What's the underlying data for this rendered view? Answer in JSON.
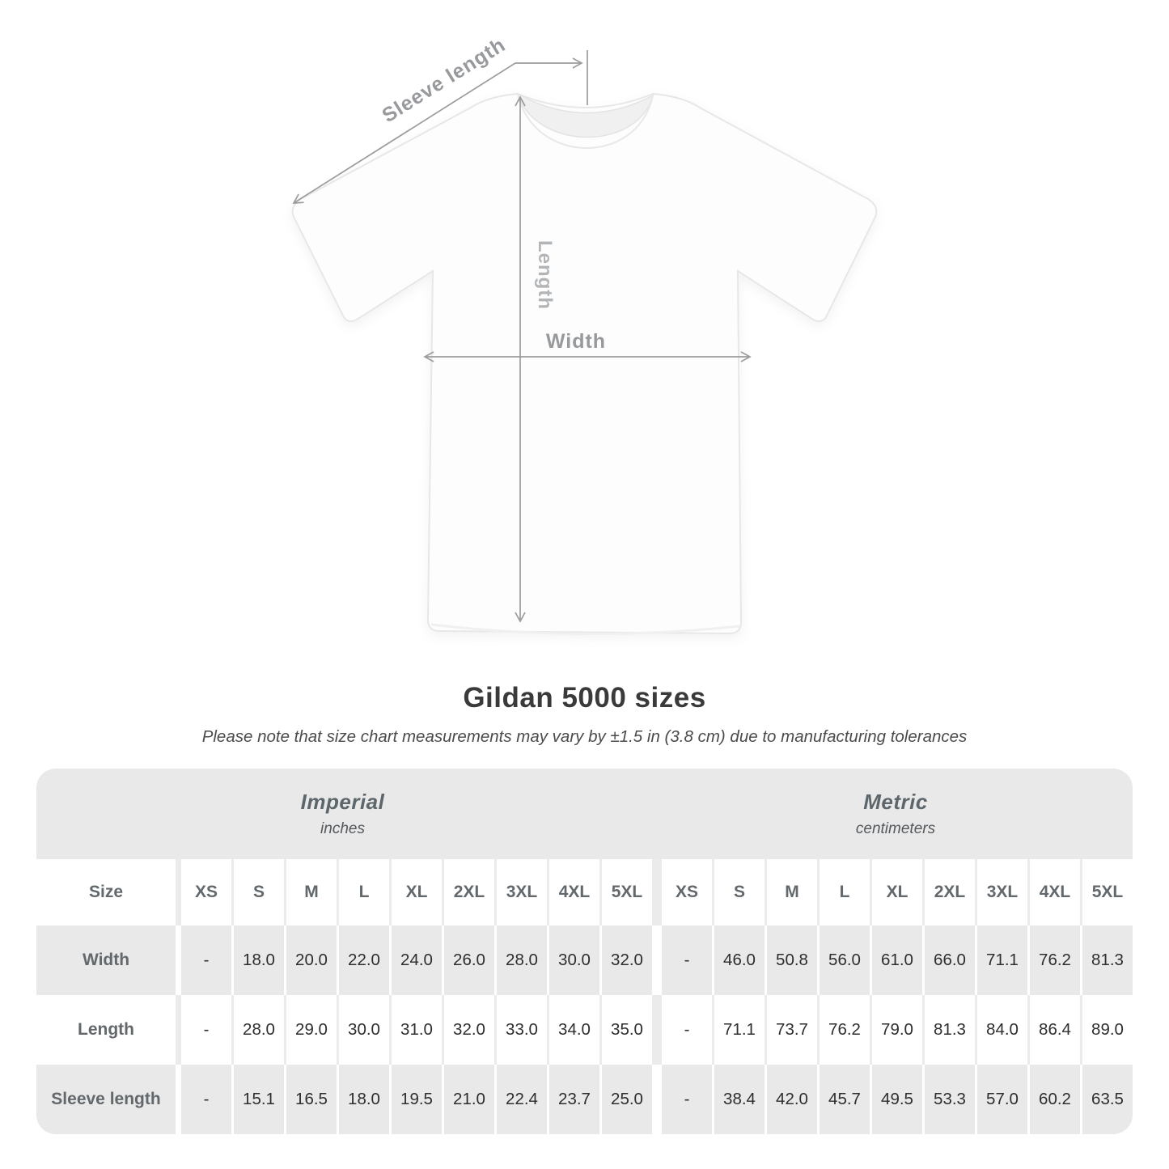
{
  "diagram": {
    "sleeve_label": "Sleeve length",
    "length_label": "Length",
    "width_label": "Width"
  },
  "chart_data": {
    "type": "table",
    "title": "Gildan 5000 sizes",
    "note": "Please note that size chart measurements may vary by ±1.5 in (3.8 cm) due to manufacturing tolerances",
    "unit_groups": [
      {
        "label": "Imperial",
        "sublabel": "inches"
      },
      {
        "label": "Metric",
        "sublabel": "centimeters"
      }
    ],
    "size_header": "Size",
    "sizes": [
      "XS",
      "S",
      "M",
      "L",
      "XL",
      "2XL",
      "3XL",
      "4XL",
      "5XL"
    ],
    "rows": [
      {
        "label": "Width",
        "imperial": [
          "-",
          "18.0",
          "20.0",
          "22.0",
          "24.0",
          "26.0",
          "28.0",
          "30.0",
          "32.0"
        ],
        "metric": [
          "-",
          "46.0",
          "50.8",
          "56.0",
          "61.0",
          "66.0",
          "71.1",
          "76.2",
          "81.3"
        ]
      },
      {
        "label": "Length",
        "imperial": [
          "-",
          "28.0",
          "29.0",
          "30.0",
          "31.0",
          "32.0",
          "33.0",
          "34.0",
          "35.0"
        ],
        "metric": [
          "-",
          "71.1",
          "73.7",
          "76.2",
          "79.0",
          "81.3",
          "84.0",
          "86.4",
          "89.0"
        ]
      },
      {
        "label": "Sleeve length",
        "imperial": [
          "-",
          "15.1",
          "16.5",
          "18.0",
          "19.5",
          "21.0",
          "22.4",
          "23.7",
          "25.0"
        ],
        "metric": [
          "-",
          "38.4",
          "42.0",
          "45.7",
          "49.5",
          "53.3",
          "57.0",
          "60.2",
          "63.5"
        ]
      }
    ]
  },
  "colors": {
    "table_gray": "#e9e9e9",
    "measure_line": "#9c9c9c",
    "label_gray": "#97999c",
    "value_text": "#2e2e2e"
  }
}
